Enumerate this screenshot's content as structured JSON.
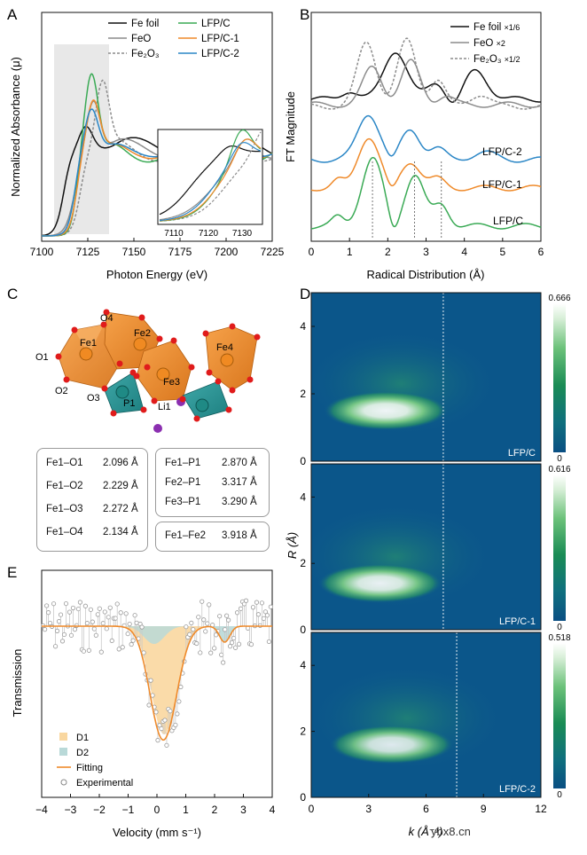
{
  "panel_labels": {
    "a": "A",
    "b": "B",
    "c": "C",
    "d": "D",
    "e": "E"
  },
  "panelA": {
    "xlabel": "Photon Energy (eV)",
    "ylabel": "Normalized Absorbance (μ)",
    "xticks": [
      "7100",
      "7125",
      "7150",
      "7175",
      "7200",
      "7225"
    ],
    "legend": [
      "Fe foil",
      "FeO",
      "Fe₂O₃",
      "LFP/C",
      "LFP/C-1",
      "LFP/C-2"
    ],
    "inset_xticks": [
      "7110",
      "7120",
      "7130"
    ]
  },
  "panelB": {
    "xlabel": "Radical Distribution (Å)",
    "ylabel": "FT Magnitude",
    "xticks": [
      "0",
      "1",
      "2",
      "3",
      "4",
      "5",
      "6"
    ],
    "legend": [
      {
        "name": "Fe foil",
        "scale": "×1/6"
      },
      {
        "name": "FeO",
        "scale": "×2"
      },
      {
        "name": "Fe₂O₃",
        "scale": "×1/2"
      }
    ],
    "curve_labels": [
      "LFP/C-2",
      "LFP/C-1",
      "LFP/C"
    ]
  },
  "panelC": {
    "atom_labels": [
      "Fe1",
      "Fe2",
      "Fe3",
      "Fe4",
      "O1",
      "O2",
      "O3",
      "O4",
      "P1",
      "Li1"
    ],
    "bonds_left": [
      {
        "name": "Fe1–O1",
        "dist": "2.096 Å"
      },
      {
        "name": "Fe1–O2",
        "dist": "2.229 Å"
      },
      {
        "name": "Fe1–O3",
        "dist": "2.272 Å"
      },
      {
        "name": "Fe1–O4",
        "dist": "2.134 Å"
      }
    ],
    "bonds_right": [
      {
        "name": "Fe1–P1",
        "dist": "2.870 Å"
      },
      {
        "name": "Fe2–P1",
        "dist": "3.317 Å"
      },
      {
        "name": "Fe3–P1",
        "dist": "3.290 Å"
      }
    ],
    "bonds_bottom": [
      {
        "name": "Fe1–Fe2",
        "dist": "3.918 Å"
      }
    ]
  },
  "panelD": {
    "xlabel": "k (Å⁻¹)",
    "ylabel": "R (Å)",
    "xticks": [
      "0",
      "3",
      "6",
      "9",
      "12"
    ],
    "yticks": [
      "0",
      "2",
      "4"
    ],
    "maps": [
      {
        "label": "LFP/C",
        "cbar_max": "0.666",
        "cbar_min": "0"
      },
      {
        "label": "LFP/C-1",
        "cbar_max": "0.616",
        "cbar_min": "0"
      },
      {
        "label": "LFP/C-2",
        "cbar_max": "0.518",
        "cbar_min": "0"
      }
    ]
  },
  "panelE": {
    "xlabel": "Velocity (mm s⁻¹)",
    "ylabel": "Transmission",
    "xticks": [
      "−4",
      "−3",
      "−2",
      "−1",
      "0",
      "1",
      "2",
      "3",
      "4"
    ],
    "legend": [
      "D1",
      "D2",
      "Fitting",
      "Experimental"
    ]
  },
  "watermark": "ybx8.cn",
  "chart_data": [
    {
      "type": "line",
      "title": "A",
      "xlabel": "Photon Energy (eV)",
      "ylabel": "Normalized Absorbance (μ)",
      "xlim": [
        7100,
        7225
      ],
      "series": [
        {
          "name": "Fe foil"
        },
        {
          "name": "FeO"
        },
        {
          "name": "Fe2O3"
        },
        {
          "name": "LFP/C"
        },
        {
          "name": "LFP/C-1"
        },
        {
          "name": "LFP/C-2"
        }
      ],
      "peaks": {
        "LFP/C": 7127,
        "Fe2O3": 7133
      }
    },
    {
      "type": "line",
      "title": "B",
      "xlabel": "Radical Distribution (Å)",
      "ylabel": "FT Magnitude",
      "xlim": [
        0,
        6
      ],
      "series": [
        {
          "name": "Fe foil ×1/6",
          "peaks": [
            2.2,
            4.3
          ]
        },
        {
          "name": "FeO ×2",
          "peaks": [
            1.6,
            2.6
          ]
        },
        {
          "name": "Fe2O3 ×1/2",
          "peaks": [
            1.45,
            2.5,
            3.3
          ]
        },
        {
          "name": "LFP/C-2",
          "peaks": [
            1.5,
            2.6
          ]
        },
        {
          "name": "LFP/C-1",
          "peaks": [
            1.5,
            2.6
          ]
        },
        {
          "name": "LFP/C",
          "peaks": [
            1.6,
            2.7,
            3.4
          ]
        }
      ],
      "reference_lines": [
        1.6,
        2.7,
        3.4
      ]
    },
    {
      "type": "heatmap",
      "title": "D",
      "xlabel": "k (Å⁻¹)",
      "ylabel": "R (Å)",
      "xlim": [
        0,
        12
      ],
      "ylim": [
        0,
        5
      ],
      "maps": [
        {
          "name": "LFP/C",
          "max": 0.666,
          "peak_k": 3.5,
          "peak_R": 1.5,
          "marker_k": 6.9
        },
        {
          "name": "LFP/C-1",
          "max": 0.616,
          "peak_k": 3.2,
          "peak_R": 1.4,
          "marker_k": 6.9
        },
        {
          "name": "LFP/C-2",
          "max": 0.518,
          "peak_k": 3.8,
          "peak_R": 1.6,
          "marker_k": 7.6
        }
      ]
    },
    {
      "type": "scatter",
      "title": "E",
      "xlabel": "Velocity (mm s⁻¹)",
      "ylabel": "Transmission",
      "xlim": [
        -4,
        4
      ],
      "components": [
        {
          "name": "D1",
          "center": 0.25,
          "width": 1.1
        },
        {
          "name": "D2",
          "center": 2.35,
          "width": 0.5
        }
      ]
    }
  ]
}
